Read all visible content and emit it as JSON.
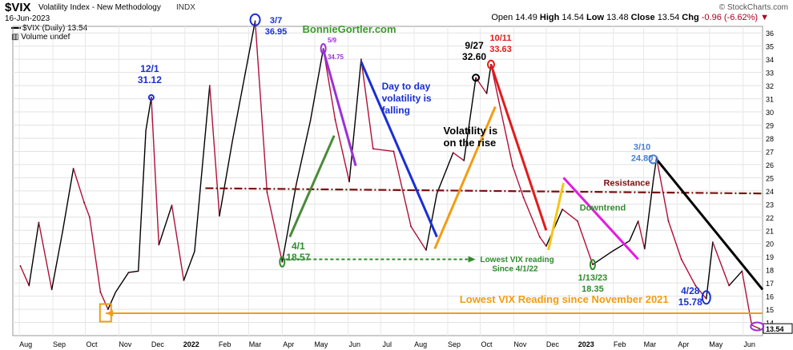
{
  "header": {
    "ticker": "$VIX",
    "name": "Volatility Index - New Methodology",
    "exchange": "INDX",
    "copyright": "© StockCharts.com",
    "date": "16-Jun-2023",
    "open_label": "Open",
    "open": "14.49",
    "high_label": "High",
    "high": "14.54",
    "low_label": "Low",
    "low": "13.48",
    "close_label": "Close",
    "close": "13.54",
    "chg_label": "Chg",
    "chg": "-0.96 (-6.62%)"
  },
  "legend": {
    "series_label": "$VIX (Daily) 13.54",
    "volume_label": "Volume undef"
  },
  "chart_data": {
    "type": "line",
    "title": "$VIX Volatility Index - New Methodology INDX",
    "ylim": [
      13,
      36.5
    ],
    "y_ticks": [
      14,
      15,
      16,
      17,
      18,
      19,
      20,
      21,
      22,
      23,
      24,
      25,
      26,
      27,
      28,
      29,
      30,
      31,
      32,
      33,
      34,
      35,
      36
    ],
    "x_ticks": [
      "Aug",
      "Sep",
      "Oct",
      "Nov",
      "Dec",
      "2022",
      "Feb",
      "Mar",
      "Apr",
      "May",
      "Jun",
      "Jul",
      "Aug",
      "Sep",
      "Oct",
      "Nov",
      "Dec",
      "2023",
      "Feb",
      "Mar",
      "Apr",
      "May",
      "Jun"
    ],
    "grid": true,
    "colors": {
      "up": "#000000",
      "down": "#b0103a"
    },
    "last_value": "13.54",
    "series": [
      {
        "name": "$VIX (Daily)",
        "points": [
          [
            "2021-08-02",
            18.3
          ],
          [
            "2021-08-10",
            16.8
          ],
          [
            "2021-08-19",
            21.6
          ],
          [
            "2021-08-31",
            16.5
          ],
          [
            "2021-09-10",
            20.9
          ],
          [
            "2021-09-20",
            25.7
          ],
          [
            "2021-09-30",
            23.1
          ],
          [
            "2021-10-05",
            22.0
          ],
          [
            "2021-10-15",
            16.3
          ],
          [
            "2021-10-22",
            15.0
          ],
          [
            "2021-10-29",
            16.3
          ],
          [
            "2021-11-10",
            17.8
          ],
          [
            "2021-11-19",
            17.9
          ],
          [
            "2021-11-26",
            28.6
          ],
          [
            "2021-12-01",
            31.1
          ],
          [
            "2021-12-08",
            19.9
          ],
          [
            "2021-12-20",
            22.9
          ],
          [
            "2021-12-31",
            17.2
          ],
          [
            "2022-01-10",
            19.4
          ],
          [
            "2022-01-24",
            32.0
          ],
          [
            "2022-02-02",
            22.1
          ],
          [
            "2022-02-14",
            27.8
          ],
          [
            "2022-03-07",
            36.9
          ],
          [
            "2022-03-18",
            23.9
          ],
          [
            "2022-04-01",
            18.6
          ],
          [
            "2022-04-14",
            24.5
          ],
          [
            "2022-04-27",
            29.3
          ],
          [
            "2022-05-09",
            34.8
          ],
          [
            "2022-05-20",
            29.4
          ],
          [
            "2022-06-02",
            24.7
          ],
          [
            "2022-06-13",
            34.0
          ],
          [
            "2022-06-24",
            27.2
          ],
          [
            "2022-07-13",
            27.0
          ],
          [
            "2022-07-29",
            21.3
          ],
          [
            "2022-08-12",
            19.5
          ],
          [
            "2022-08-22",
            23.8
          ],
          [
            "2022-09-06",
            26.9
          ],
          [
            "2022-09-16",
            26.3
          ],
          [
            "2022-09-27",
            32.6
          ],
          [
            "2022-10-07",
            31.4
          ],
          [
            "2022-10-11",
            33.6
          ],
          [
            "2022-10-31",
            25.9
          ],
          [
            "2022-11-10",
            23.5
          ],
          [
            "2022-11-25",
            20.5
          ],
          [
            "2022-12-01",
            19.8
          ],
          [
            "2022-12-16",
            22.6
          ],
          [
            "2022-12-30",
            21.7
          ],
          [
            "2023-01-13",
            18.4
          ],
          [
            "2023-01-31",
            19.4
          ],
          [
            "2023-02-16",
            20.2
          ],
          [
            "2023-02-24",
            21.7
          ],
          [
            "2023-03-02",
            19.6
          ],
          [
            "2023-03-10",
            24.8
          ],
          [
            "2023-03-13",
            26.5
          ],
          [
            "2023-03-24",
            21.7
          ],
          [
            "2023-04-05",
            18.8
          ],
          [
            "2023-04-18",
            16.8
          ],
          [
            "2023-04-28",
            15.8
          ],
          [
            "2023-05-04",
            20.1
          ],
          [
            "2023-05-19",
            16.8
          ],
          [
            "2023-05-31",
            17.9
          ],
          [
            "2023-06-09",
            13.8
          ],
          [
            "2023-06-16",
            13.54
          ]
        ]
      }
    ]
  },
  "annotations": {
    "watermark": "BonnieGortler.com",
    "a_12_1": [
      "12/1",
      "31.12"
    ],
    "a_3_7": [
      "3/7",
      "36.95"
    ],
    "a_5_9": [
      "5/9",
      "34.75"
    ],
    "a_9_27": [
      "9/27",
      "32.60"
    ],
    "a_10_11": [
      "10/11",
      "33.63"
    ],
    "a_3_10": [
      "3/10",
      "24.80"
    ],
    "a_4_1": [
      "4/1",
      "18.57"
    ],
    "a_1_13": [
      "1/13/23",
      "18.35"
    ],
    "a_4_28": [
      "4/28",
      "15.78"
    ],
    "day_to_day": [
      "Day to day",
      "volatility is",
      "falling"
    ],
    "vol_rise": [
      "Volatility is",
      "on the rise"
    ],
    "resistance": "Resistance",
    "downtrend": "Downtrend",
    "lowest_reading": [
      "Lowest VIX reading",
      "Since 4/1/22"
    ],
    "lowest_since_nov": "Lowest VIX Reading since November 2021"
  }
}
